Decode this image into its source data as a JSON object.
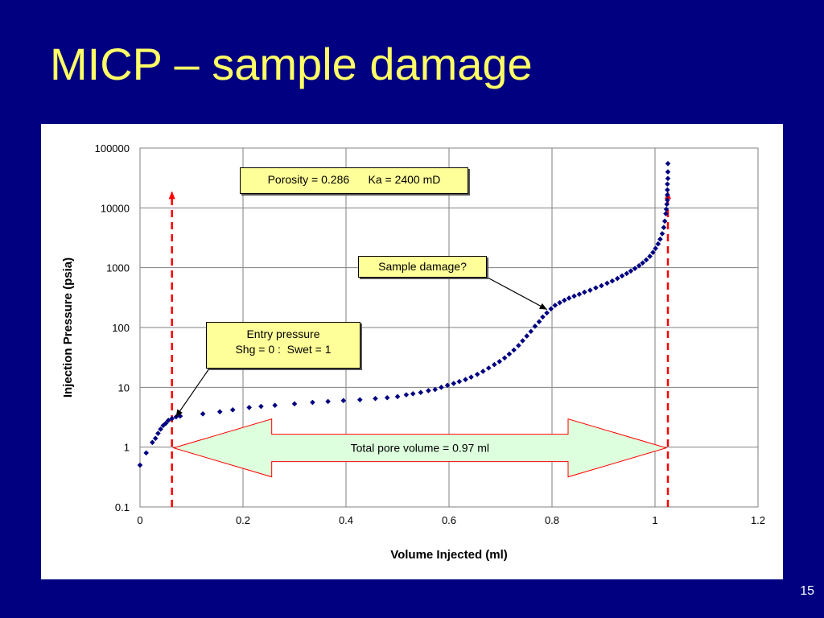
{
  "slide": {
    "title": "MICP – sample damage",
    "page_number": "15"
  },
  "chart_data": {
    "type": "scatter",
    "title": "",
    "xlabel": "Volume Injected (ml)",
    "ylabel": "Injection Pressure (psia)",
    "xlim": [
      0,
      1.2
    ],
    "ylim": [
      0.1,
      100000
    ],
    "yscale": "log",
    "x_ticks": [
      0,
      0.2,
      0.4,
      0.6,
      0.8,
      1,
      1.2
    ],
    "x_tick_labels": [
      "0",
      "0.2",
      "0.4",
      "0.6",
      "0.8",
      "1",
      "1.2"
    ],
    "y_ticks": [
      0.1,
      1,
      10,
      100,
      1000,
      10000,
      100000
    ],
    "y_tick_labels": [
      "0.1",
      "1",
      "10",
      "100",
      "1000",
      "10000",
      "100000"
    ],
    "grid": true,
    "marker_color": "#000080",
    "series": [
      {
        "x": [
          0.0,
          0.012,
          0.024,
          0.03,
          0.035,
          0.04,
          0.045,
          0.05,
          0.055,
          0.062,
          0.07,
          0.078,
          0.122,
          0.155,
          0.18,
          0.212,
          0.235,
          0.262,
          0.3,
          0.335,
          0.365,
          0.395,
          0.427,
          0.457,
          0.48,
          0.5,
          0.517,
          0.53,
          0.545,
          0.56,
          0.573,
          0.585,
          0.597,
          0.609,
          0.62,
          0.632,
          0.643,
          0.655,
          0.666,
          0.677,
          0.688,
          0.698,
          0.708,
          0.717,
          0.726,
          0.735,
          0.743,
          0.751,
          0.759,
          0.767,
          0.775,
          0.782,
          0.79,
          0.798,
          0.806,
          0.815,
          0.824,
          0.833,
          0.843,
          0.853,
          0.863,
          0.874,
          0.885,
          0.896,
          0.907,
          0.917,
          0.927,
          0.936,
          0.945,
          0.953,
          0.961,
          0.969,
          0.976,
          0.983,
          0.99,
          0.996,
          1.001,
          1.006,
          1.01,
          1.014,
          1.017,
          1.019,
          1.021,
          1.022,
          1.023,
          1.024,
          1.024,
          1.024,
          1.024,
          1.025,
          1.025,
          1.025
        ],
        "y": [
          0.5,
          0.8,
          1.2,
          1.4,
          1.7,
          2.0,
          2.3,
          2.5,
          2.8,
          3.0,
          3.2,
          3.3,
          3.6,
          3.9,
          4.2,
          4.6,
          4.8,
          5.0,
          5.3,
          5.6,
          5.8,
          6.0,
          6.2,
          6.5,
          6.7,
          7.0,
          7.5,
          7.8,
          8.2,
          8.8,
          9.2,
          10,
          10.8,
          11.6,
          12.5,
          13.5,
          14.8,
          16.5,
          18.5,
          21,
          24,
          27,
          31,
          36,
          42,
          50,
          60,
          72,
          86,
          105,
          125,
          150,
          175,
          205,
          235,
          260,
          285,
          310,
          335,
          360,
          390,
          420,
          460,
          500,
          550,
          600,
          660,
          730,
          800,
          880,
          970,
          1080,
          1200,
          1350,
          1550,
          1800,
          2100,
          2500,
          3000,
          3700,
          4700,
          6000,
          8000,
          9500,
          11500,
          13500,
          16500,
          20000,
          25000,
          31000,
          40000,
          55000
        ]
      }
    ],
    "annotations": {
      "porosity_box": "Porosity = 0.286      Ka = 2400 mD",
      "damage_box": "Sample damage?",
      "entry_box_line1": "Entry pressure",
      "entry_box_line2": "Shg = 0 :  Swet = 1",
      "pore_volume_label": "Total pore volume = 0.97 ml",
      "left_marker_x": 0.062,
      "right_marker_x": 1.025,
      "damage_point": {
        "x": 0.795,
        "y": 200
      },
      "entry_point": {
        "x": 0.068,
        "y": 3.2
      },
      "pore_arrow_colors": {
        "fill": "#DDFFDD",
        "stroke": "#FF0000"
      },
      "marker_line_color": "#FF0000"
    }
  }
}
